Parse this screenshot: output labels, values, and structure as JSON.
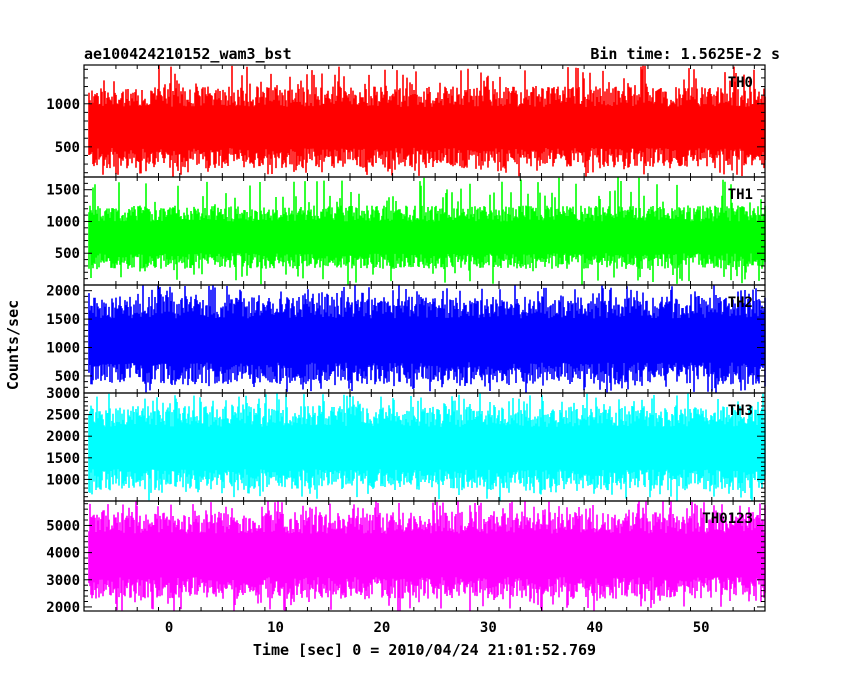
{
  "header": {
    "title": "ae100424210152_wam3_bst",
    "bin_time": "Bin time: 1.5625E-2 s"
  },
  "chart_data": {
    "type": "line",
    "title": "ae100424210152_wam3_bst",
    "subtitle": "Bin time: 1.5625E-2 s",
    "xlabel": "Time [sec] 0 = 2010/04/24 21:01:52.769",
    "ylabel": "Counts/sec",
    "xlim": [
      -8,
      56
    ],
    "x_ticks": [
      0,
      10,
      20,
      30,
      40,
      50
    ],
    "x_range_of_data": [
      -7.5,
      56
    ],
    "grid": false,
    "panels": [
      {
        "name": "TH0",
        "color": "#ff0000",
        "ylim": [
          150,
          1450
        ],
        "y_ticks": [
          500,
          1000
        ],
        "typical_range": [
          250,
          1200
        ],
        "mean": 700
      },
      {
        "name": "TH1",
        "color": "#00ff00",
        "ylim": [
          0,
          1700
        ],
        "y_ticks": [
          500,
          1000,
          1500
        ],
        "typical_range": [
          250,
          1250
        ],
        "mean": 650
      },
      {
        "name": "TH2",
        "color": "#0000ff",
        "ylim": [
          200,
          2100
        ],
        "y_ticks": [
          500,
          1000,
          1500,
          2000
        ],
        "typical_range": [
          350,
          1900
        ],
        "mean": 1000
      },
      {
        "name": "TH3",
        "color": "#00ffff",
        "ylim": [
          500,
          3000
        ],
        "y_ticks": [
          1000,
          1500,
          2000,
          2500,
          3000
        ],
        "typical_range": [
          750,
          2700
        ],
        "mean": 1600
      },
      {
        "name": "TH0123",
        "color": "#ff00ff",
        "ylim": [
          1850,
          5900
        ],
        "y_ticks": [
          2000,
          3000,
          4000,
          5000
        ],
        "typical_range": [
          2300,
          5500
        ],
        "mean": 3900
      }
    ]
  }
}
